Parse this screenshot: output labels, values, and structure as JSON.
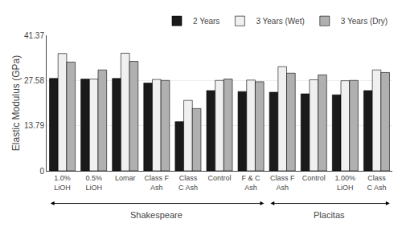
{
  "chart_data": {
    "type": "bar",
    "categories": [
      "1.0%\nLiOH",
      "0.5%\nLiOH",
      "Lomar",
      "Class F\nAsh",
      "Class\nC Ash",
      "Control",
      "F & C\nAsh",
      "Class F\nAsh",
      "Control",
      "1.00%\nLiOH",
      "Class\nC Ash"
    ],
    "series": [
      {
        "name": "2 Years",
        "color": "#1a1a1a",
        "values": [
          28.2,
          28.0,
          28.2,
          26.8,
          15.0,
          24.5,
          24.2,
          24.0,
          23.5,
          23.2,
          24.5
        ]
      },
      {
        "name": "3 Years (Wet)",
        "color": "#f0f0f0",
        "values": [
          35.8,
          28.0,
          35.9,
          27.9,
          21.5,
          27.6,
          27.7,
          31.8,
          27.8,
          27.5,
          30.8
        ]
      },
      {
        "name": "3 Years (Dry)",
        "color": "#b0b0b0",
        "values": [
          33.2,
          30.8,
          33.4,
          27.6,
          19.0,
          28.0,
          27.2,
          29.8,
          29.3,
          27.6,
          30.0
        ]
      }
    ],
    "ylabel": "Elastic Modulus (GPa)",
    "ylim": [
      0,
      41.37
    ],
    "yticks": [
      0,
      13.79,
      27.58,
      41.37
    ],
    "grid": true,
    "legend": "upper right",
    "annotations": [
      {
        "text": "Shakespeare",
        "from": 0,
        "to": 6
      },
      {
        "text": "Placitas",
        "from": 7,
        "to": 10
      }
    ]
  }
}
